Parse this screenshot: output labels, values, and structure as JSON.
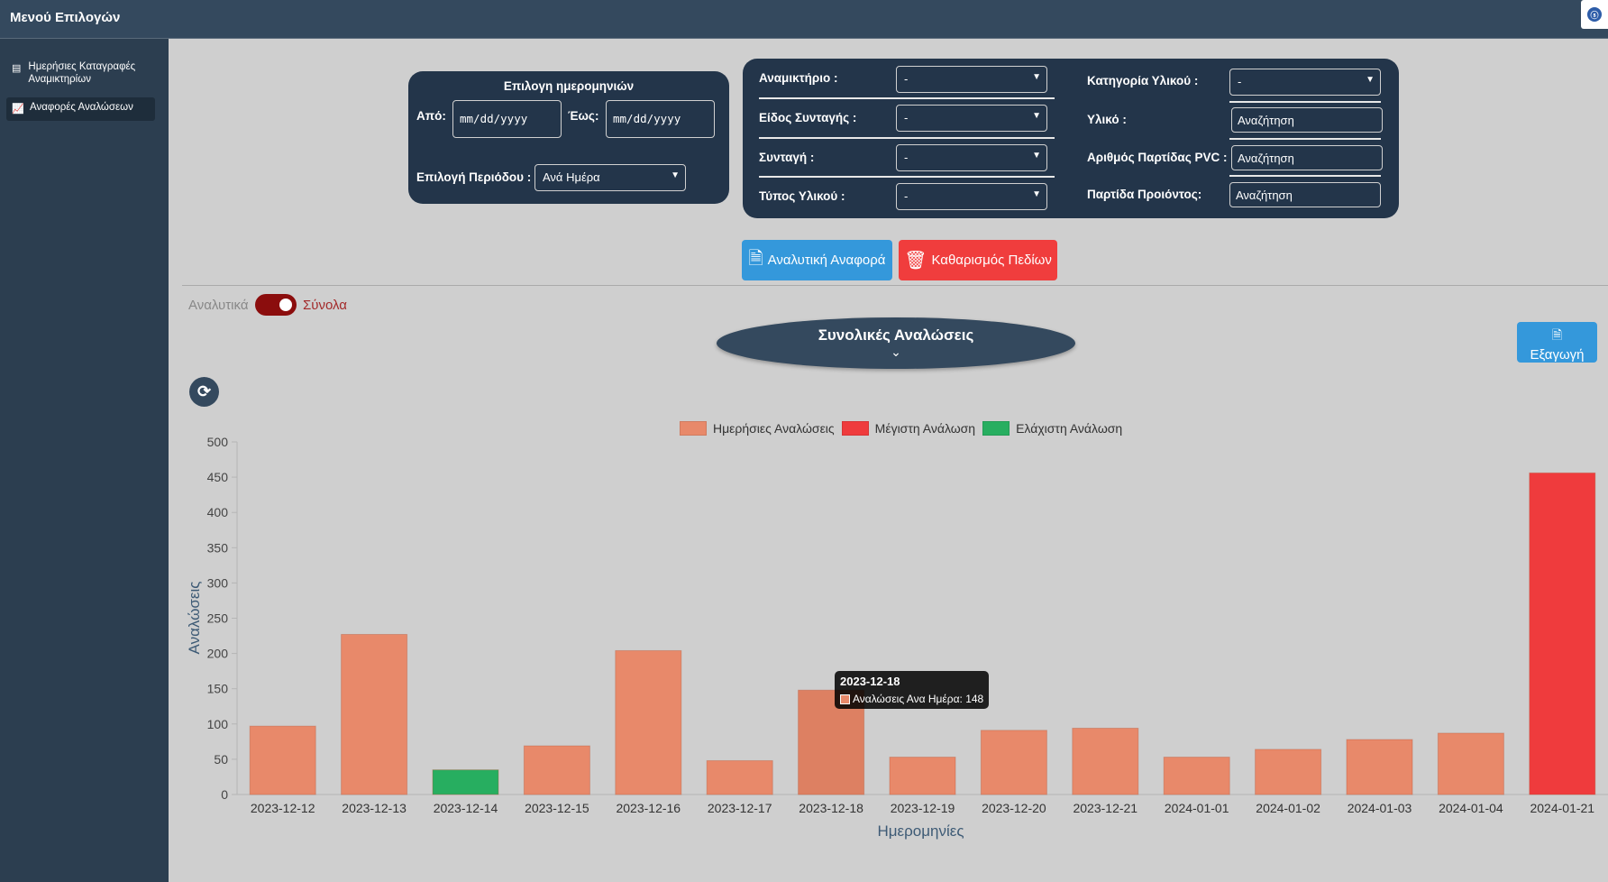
{
  "app": {
    "title": "Μενού Επιλογών"
  },
  "sidebar": {
    "items": [
      {
        "label": "Ημερήσιες Καταγραφές Αναμικτηρίων",
        "icon": "database-icon"
      },
      {
        "label": "Αναφορές Αναλώσεων",
        "icon": "chart-icon",
        "active": true
      }
    ]
  },
  "date_panel": {
    "title": "Επιλογη ημερομηνιών",
    "from_label": "Από:",
    "to_label": "Έως:",
    "from_placeholder": "mm/dd/yyyy",
    "to_placeholder": "mm/dd/yyyy",
    "period_label": "Επιλογή Περιόδου :",
    "period_value": "Ανά Ημέρα"
  },
  "filter_panel": {
    "mixer_label": "Αναμικτήριο :",
    "mixer_value": "-",
    "recipe_type_label": "Είδος Συνταγής :",
    "recipe_type_value": "-",
    "recipe_label": "Συνταγή :",
    "recipe_value": "-",
    "material_type_label": "Τύπος Υλικού :",
    "material_type_value": "-",
    "material_category_label": "Κατηγορία Υλικού :",
    "material_category_value": "-",
    "material_label": "Υλικό :",
    "material_placeholder": "Αναζήτηση",
    "pvc_batch_label": "Αριθμός Παρτίδας PVC :",
    "pvc_batch_placeholder": "Αναζήτηση",
    "product_batch_label": "Παρτίδα Προιόντος:",
    "product_batch_placeholder": "Αναζήτηση"
  },
  "actions": {
    "report_label": "Αναλυτική Αναφορά",
    "clear_label": "Καθαρισμός Πεδίων",
    "export_label": "Εξαγωγή"
  },
  "toggle": {
    "left_label": "Αναλυτικά",
    "right_label": "Σύνολα",
    "active_color": "#8b0d0d"
  },
  "section": {
    "title": "Συνολικές Αναλώσεις",
    "chevron": "⌄"
  },
  "tooltip": {
    "title": "2023-12-18",
    "line": "Αναλώσεις Ανα Ημέρα: 148"
  },
  "colors": {
    "daily": "#e8896a",
    "max": "#ef3b3d",
    "min": "#27ae60",
    "panel": "#23354a",
    "sidebar": "#2c3e50"
  },
  "chart_data": {
    "type": "bar",
    "categories": [
      "2023-12-12",
      "2023-12-13",
      "2023-12-14",
      "2023-12-15",
      "2023-12-16",
      "2023-12-17",
      "2023-12-18",
      "2023-12-19",
      "2023-12-20",
      "2023-12-21",
      "2024-01-01",
      "2024-01-02",
      "2024-01-03",
      "2024-01-04",
      "2024-01-21"
    ],
    "values": [
      97,
      227,
      35,
      69,
      204,
      48,
      148,
      53,
      91,
      94,
      53,
      64,
      78,
      87,
      456
    ],
    "series": [
      {
        "name": "Ημερήσιες Αναλώσεις",
        "color": "#e8896a"
      },
      {
        "name": "Μέγιστη Ανάλωση",
        "color": "#ef3b3d"
      },
      {
        "name": "Ελάχιστη Ανάλωση",
        "color": "#27ae60"
      }
    ],
    "max_index": 14,
    "min_index": 2,
    "hover_index": 6,
    "xlabel": "Ημερομηνίες",
    "ylabel": "Αναλώσεις",
    "ylim": [
      0,
      500
    ],
    "yticks": [
      0,
      50,
      100,
      150,
      200,
      250,
      300,
      350,
      400,
      450,
      500
    ],
    "legend_position": "top"
  }
}
